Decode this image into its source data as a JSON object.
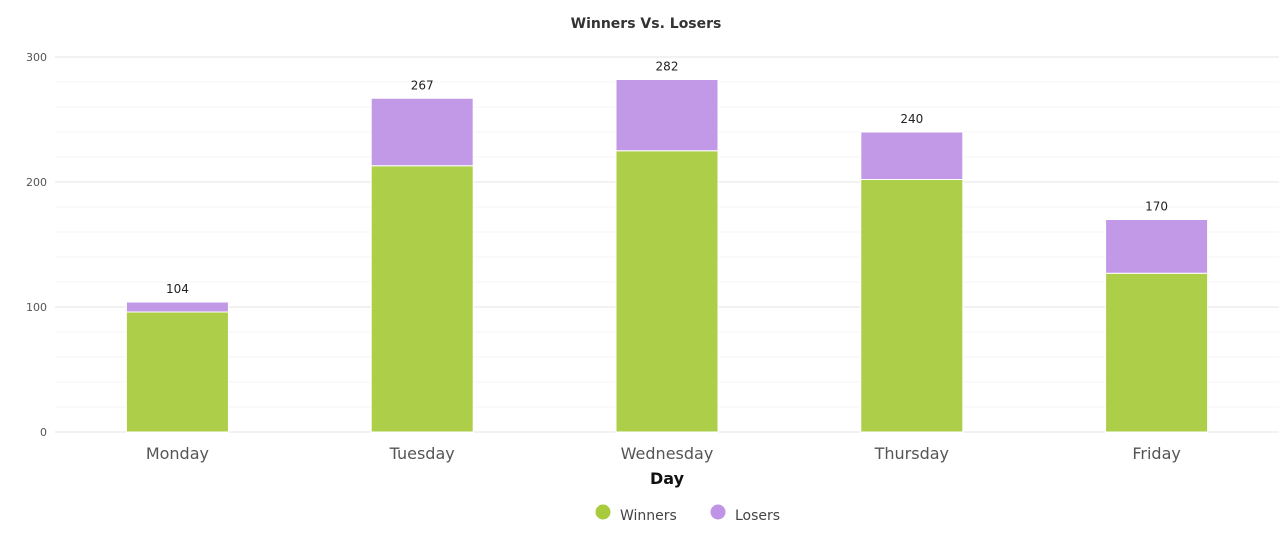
{
  "chart_data": {
    "type": "bar",
    "stacked": true,
    "title": "Winners Vs. Losers",
    "xlabel": "Day",
    "ylabel": "",
    "categories": [
      "Monday",
      "Tuesday",
      "Wednesday",
      "Thursday",
      "Friday"
    ],
    "series": [
      {
        "name": "Winners",
        "values": [
          96,
          213,
          225,
          202,
          127
        ],
        "color": "#a8cb3e"
      },
      {
        "name": "Losers",
        "values": [
          8,
          54,
          57,
          38,
          43
        ],
        "color": "#bf93e6"
      }
    ],
    "totals": [
      104,
      267,
      282,
      240,
      170
    ],
    "ylim": [
      0,
      300
    ],
    "yticks": [
      0,
      100,
      200,
      300
    ],
    "grid": true,
    "legend_position": "bottom"
  }
}
